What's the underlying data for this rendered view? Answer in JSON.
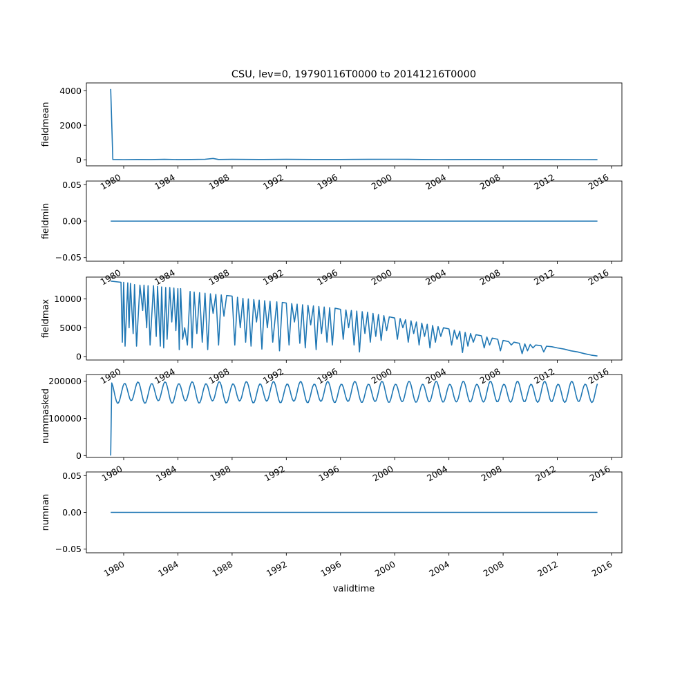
{
  "title": "CSU, lev=0, 19790116T0000 to 20141216T0000",
  "line_color": "#1f77b4",
  "chart_data": {
    "type": "line",
    "x_axis": {
      "label": "validtime",
      "range": [
        1978.0,
        2016.3
      ],
      "ticks": [
        1980,
        1984,
        1988,
        1992,
        1996,
        2000,
        2004,
        2008,
        2012,
        2016
      ],
      "tick_labels": [
        "1980",
        "1984",
        "1988",
        "1992",
        "1996",
        "2000",
        "2004",
        "2008",
        "2012",
        "2016"
      ]
    },
    "panels": [
      {
        "ylabel": "fieldmean",
        "ylim": [
          -350,
          4450
        ],
        "yticks": [
          0,
          2000,
          4000
        ],
        "ytick_labels": [
          "0",
          "2000",
          "4000"
        ],
        "points": [
          [
            1979.04,
            4100
          ],
          [
            1979.2,
            20
          ],
          [
            1980,
            10
          ],
          [
            1981,
            20
          ],
          [
            1982,
            12
          ],
          [
            1983,
            25
          ],
          [
            1984,
            15
          ],
          [
            1985,
            20
          ],
          [
            1986,
            30
          ],
          [
            1986.6,
            80
          ],
          [
            1987,
            20
          ],
          [
            1988,
            25
          ],
          [
            1990,
            20
          ],
          [
            1992,
            25
          ],
          [
            1994,
            20
          ],
          [
            1996,
            20
          ],
          [
            1998,
            25
          ],
          [
            2000,
            30
          ],
          [
            2001,
            25
          ],
          [
            2002,
            20
          ],
          [
            2004,
            15
          ],
          [
            2006,
            20
          ],
          [
            2008,
            15
          ],
          [
            2010,
            20
          ],
          [
            2012,
            15
          ],
          [
            2014,
            10
          ],
          [
            2014.96,
            5
          ]
        ]
      },
      {
        "ylabel": "fieldmin",
        "ylim": [
          -0.055,
          0.055
        ],
        "yticks": [
          -0.05,
          0.0,
          0.05
        ],
        "ytick_labels": [
          "−0.05",
          "0.00",
          "0.05"
        ],
        "points": [
          [
            1979.04,
            0
          ],
          [
            2014.96,
            0
          ]
        ]
      },
      {
        "ylabel": "fieldmax",
        "ylim": [
          -600,
          13800
        ],
        "yticks": [
          0,
          5000,
          10000
        ],
        "ytick_labels": [
          "0",
          "5000",
          "10000"
        ],
        "points": [
          [
            1979.04,
            13100
          ],
          [
            1979.8,
            12900
          ],
          [
            1979.9,
            2500
          ],
          [
            1980.0,
            12900
          ],
          [
            1980.1,
            1800
          ],
          [
            1980.3,
            12800
          ],
          [
            1980.4,
            5000
          ],
          [
            1980.5,
            12700
          ],
          [
            1980.7,
            4000
          ],
          [
            1980.8,
            12500
          ],
          [
            1980.95,
            1800
          ],
          [
            1981.2,
            12400
          ],
          [
            1981.4,
            8000
          ],
          [
            1981.5,
            12400
          ],
          [
            1981.7,
            5000
          ],
          [
            1981.8,
            12300
          ],
          [
            1981.95,
            2000
          ],
          [
            1982.2,
            12300
          ],
          [
            1982.4,
            3500
          ],
          [
            1982.5,
            12200
          ],
          [
            1982.7,
            1800
          ],
          [
            1982.8,
            12100
          ],
          [
            1982.95,
            1500
          ],
          [
            1983.1,
            12000
          ],
          [
            1983.2,
            3000
          ],
          [
            1983.4,
            12000
          ],
          [
            1983.55,
            6000
          ],
          [
            1983.7,
            11900
          ],
          [
            1983.85,
            4500
          ],
          [
            1984.0,
            11800
          ],
          [
            1984.1,
            1200
          ],
          [
            1984.2,
            11800
          ],
          [
            1984.35,
            3000
          ],
          [
            1984.5,
            5000
          ],
          [
            1984.7,
            2000
          ],
          [
            1984.9,
            11300
          ],
          [
            1985.05,
            1500
          ],
          [
            1985.2,
            11200
          ],
          [
            1985.4,
            4000
          ],
          [
            1985.6,
            11100
          ],
          [
            1985.8,
            2500
          ],
          [
            1986.0,
            11000
          ],
          [
            1986.2,
            1200
          ],
          [
            1986.4,
            10900
          ],
          [
            1986.6,
            7500
          ],
          [
            1986.8,
            10800
          ],
          [
            1987.0,
            2000
          ],
          [
            1987.2,
            10700
          ],
          [
            1987.4,
            7000
          ],
          [
            1987.6,
            10600
          ],
          [
            1988.0,
            10500
          ],
          [
            1988.2,
            2000
          ],
          [
            1988.4,
            10300
          ],
          [
            1988.6,
            5000
          ],
          [
            1988.8,
            10100
          ],
          [
            1989.0,
            2500
          ],
          [
            1989.2,
            10000
          ],
          [
            1989.4,
            1800
          ],
          [
            1989.6,
            9900
          ],
          [
            1989.8,
            6000
          ],
          [
            1990.0,
            9800
          ],
          [
            1990.2,
            1300
          ],
          [
            1990.4,
            9700
          ],
          [
            1990.6,
            5000
          ],
          [
            1990.8,
            9600
          ],
          [
            1991.0,
            2500
          ],
          [
            1991.3,
            9500
          ],
          [
            1991.5,
            1000
          ],
          [
            1991.7,
            9400
          ],
          [
            1992.0,
            9300
          ],
          [
            1992.2,
            2000
          ],
          [
            1992.4,
            9200
          ],
          [
            1992.6,
            6000
          ],
          [
            1992.8,
            9100
          ],
          [
            1993.0,
            2300
          ],
          [
            1993.2,
            9000
          ],
          [
            1993.4,
            1500
          ],
          [
            1993.6,
            8900
          ],
          [
            1993.8,
            5500
          ],
          [
            1994.0,
            8800
          ],
          [
            1994.2,
            1200
          ],
          [
            1994.4,
            8700
          ],
          [
            1994.6,
            4000
          ],
          [
            1994.8,
            8600
          ],
          [
            1995.0,
            2500
          ],
          [
            1995.2,
            8500
          ],
          [
            1995.4,
            2000
          ],
          [
            1995.6,
            8400
          ],
          [
            1996.0,
            8200
          ],
          [
            1996.2,
            3000
          ],
          [
            1996.4,
            8100
          ],
          [
            1996.6,
            5000
          ],
          [
            1996.8,
            8000
          ],
          [
            1997.0,
            2000
          ],
          [
            1997.2,
            7900
          ],
          [
            1997.4,
            800
          ],
          [
            1997.6,
            7800
          ],
          [
            1997.8,
            4000
          ],
          [
            1998.0,
            7700
          ],
          [
            1998.2,
            2500
          ],
          [
            1998.4,
            7500
          ],
          [
            1998.6,
            3500
          ],
          [
            1998.8,
            7300
          ],
          [
            1999.0,
            2800
          ],
          [
            1999.2,
            7100
          ],
          [
            1999.4,
            4500
          ],
          [
            1999.6,
            6900
          ],
          [
            2000.0,
            6700
          ],
          [
            2000.2,
            3000
          ],
          [
            2000.4,
            6600
          ],
          [
            2000.6,
            5000
          ],
          [
            2000.8,
            6400
          ],
          [
            2001.0,
            2500
          ],
          [
            2001.2,
            6200
          ],
          [
            2001.4,
            4000
          ],
          [
            2001.6,
            6000
          ],
          [
            2001.8,
            2000
          ],
          [
            2002.0,
            5800
          ],
          [
            2002.2,
            3500
          ],
          [
            2002.4,
            5600
          ],
          [
            2002.6,
            1500
          ],
          [
            2002.8,
            5400
          ],
          [
            2003.0,
            2500
          ],
          [
            2003.2,
            5200
          ],
          [
            2003.4,
            3500
          ],
          [
            2003.6,
            5000
          ],
          [
            2004.0,
            4800
          ],
          [
            2004.2,
            2000
          ],
          [
            2004.4,
            4600
          ],
          [
            2004.6,
            3000
          ],
          [
            2004.8,
            4400
          ],
          [
            2005.0,
            700
          ],
          [
            2005.2,
            4200
          ],
          [
            2005.4,
            1800
          ],
          [
            2005.6,
            4000
          ],
          [
            2005.8,
            2500
          ],
          [
            2006.0,
            3800
          ],
          [
            2006.4,
            3600
          ],
          [
            2006.6,
            1500
          ],
          [
            2006.8,
            3400
          ],
          [
            2007.0,
            2000
          ],
          [
            2007.2,
            3200
          ],
          [
            2007.6,
            3000
          ],
          [
            2007.8,
            1000
          ],
          [
            2008.0,
            2800
          ],
          [
            2008.4,
            2600
          ],
          [
            2008.6,
            2000
          ],
          [
            2008.8,
            2500
          ],
          [
            2009.2,
            2300
          ],
          [
            2009.4,
            500
          ],
          [
            2009.6,
            2200
          ],
          [
            2009.8,
            1000
          ],
          [
            2010.0,
            2100
          ],
          [
            2010.2,
            1500
          ],
          [
            2010.4,
            2000
          ],
          [
            2010.8,
            1900
          ],
          [
            2011.0,
            800
          ],
          [
            2011.2,
            1800
          ],
          [
            2011.6,
            1700
          ],
          [
            2012.0,
            1500
          ],
          [
            2012.5,
            1300
          ],
          [
            2013.0,
            1000
          ],
          [
            2013.5,
            800
          ],
          [
            2014.0,
            500
          ],
          [
            2014.5,
            250
          ],
          [
            2014.96,
            100
          ]
        ]
      },
      {
        "ylabel": "nummasked",
        "ylim": [
          -5000,
          218000
        ],
        "yticks": [
          0,
          100000,
          200000
        ],
        "ytick_labels": [
          "0",
          "100000",
          "200000"
        ],
        "seasonal": {
          "start": 1979.12,
          "end": 2014.96,
          "step": 0.0833333,
          "base": 170000,
          "amplitude": 26000,
          "phase": 0.0,
          "first_value": 0,
          "first_x": 1979.04
        }
      },
      {
        "ylabel": "numnan",
        "ylim": [
          -0.055,
          0.055
        ],
        "yticks": [
          -0.05,
          0.0,
          0.05
        ],
        "ytick_labels": [
          "−0.05",
          "0.00",
          "0.05"
        ],
        "points": [
          [
            1979.04,
            0
          ],
          [
            2014.96,
            0
          ]
        ]
      }
    ]
  }
}
